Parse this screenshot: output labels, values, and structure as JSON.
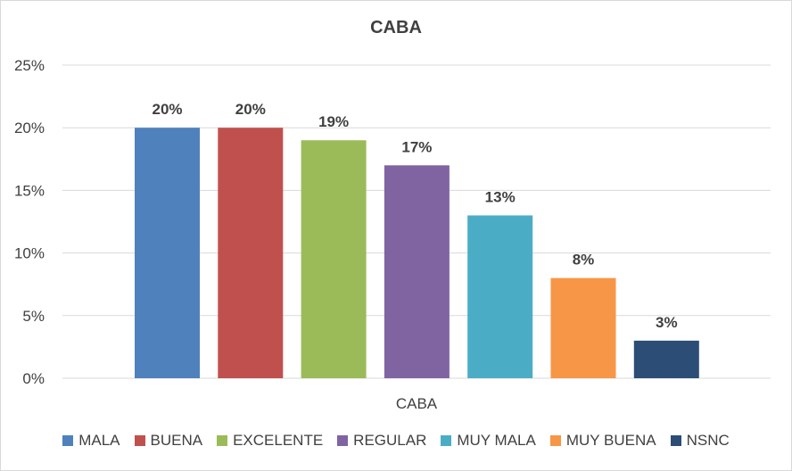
{
  "chart_data": {
    "type": "bar",
    "title": "CABA",
    "categories": [
      "CABA"
    ],
    "series": [
      {
        "name": "MALA",
        "values": [
          20
        ],
        "label": "20%",
        "color": "#4f81bd"
      },
      {
        "name": "BUENA",
        "values": [
          20
        ],
        "label": "20%",
        "color": "#c0504d"
      },
      {
        "name": "EXCELENTE",
        "values": [
          19
        ],
        "label": "19%",
        "color": "#9bbb59"
      },
      {
        "name": "REGULAR",
        "values": [
          17
        ],
        "label": "17%",
        "color": "#8064a2"
      },
      {
        "name": "MUY MALA",
        "values": [
          13
        ],
        "label": "13%",
        "color": "#4bacc6"
      },
      {
        "name": "MUY BUENA",
        "values": [
          8
        ],
        "label": "8%",
        "color": "#f79646"
      },
      {
        "name": "NSNC",
        "values": [
          3
        ],
        "label": "3%",
        "color": "#2c4d75"
      }
    ],
    "yticks": [
      "0%",
      "5%",
      "10%",
      "15%",
      "20%",
      "25%"
    ],
    "ylim": [
      0,
      25
    ],
    "grid": true,
    "legend_position": "bottom"
  }
}
